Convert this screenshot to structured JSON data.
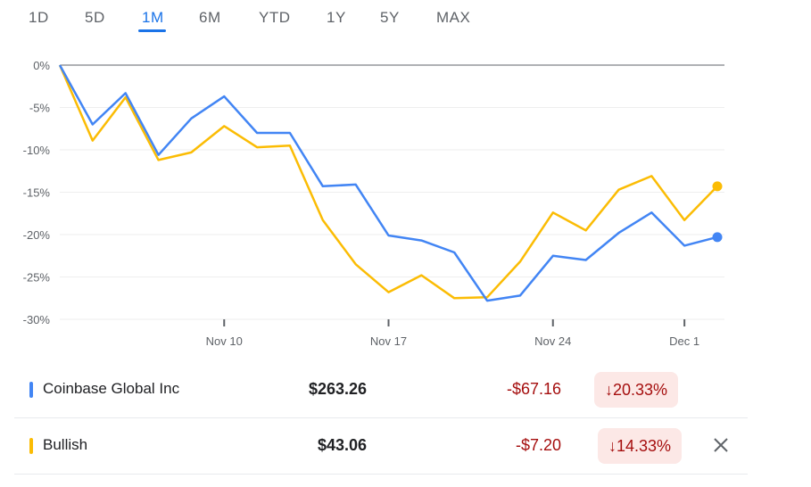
{
  "tabs": {
    "items": [
      "1D",
      "5D",
      "1M",
      "6M",
      "YTD",
      "1Y",
      "5Y",
      "MAX"
    ],
    "active": "1M"
  },
  "chart_data": {
    "type": "line",
    "x_labels": [
      "Nov 10",
      "Nov 17",
      "Nov 24",
      "Dec 1"
    ],
    "y_ticks": [
      "0%",
      "-5%",
      "-10%",
      "-15%",
      "-20%",
      "-25%",
      "-30%"
    ],
    "ylim": [
      -30,
      0
    ],
    "grid": true,
    "series": [
      {
        "name": "Coinbase Global Inc",
        "color": "#4285f4",
        "values": [
          0,
          -7.0,
          -3.3,
          -10.6,
          -6.3,
          -3.7,
          -8.0,
          -8.0,
          -14.3,
          -14.1,
          -20.1,
          -20.7,
          -22.1,
          -27.8,
          -27.2,
          -22.5,
          -23.0,
          -19.8,
          -17.4,
          -21.3,
          -20.3
        ]
      },
      {
        "name": "Bullish",
        "color": "#fbbc04",
        "values": [
          0,
          -8.9,
          -3.8,
          -11.2,
          -10.3,
          -7.2,
          -9.7,
          -9.5,
          -18.3,
          -23.5,
          -26.8,
          -24.8,
          -27.5,
          -27.4,
          -23.2,
          -17.4,
          -19.5,
          -14.7,
          -13.1,
          -18.3,
          -14.3
        ]
      }
    ]
  },
  "rows": [
    {
      "name": "Coinbase Global Inc",
      "color": "#4285f4",
      "price": "$263.26",
      "change": "-$67.16",
      "pct": "↓20.33%"
    },
    {
      "name": "Bullish",
      "color": "#fbbc04",
      "price": "$43.06",
      "change": "-$7.20",
      "pct": "↓14.33%"
    }
  ]
}
